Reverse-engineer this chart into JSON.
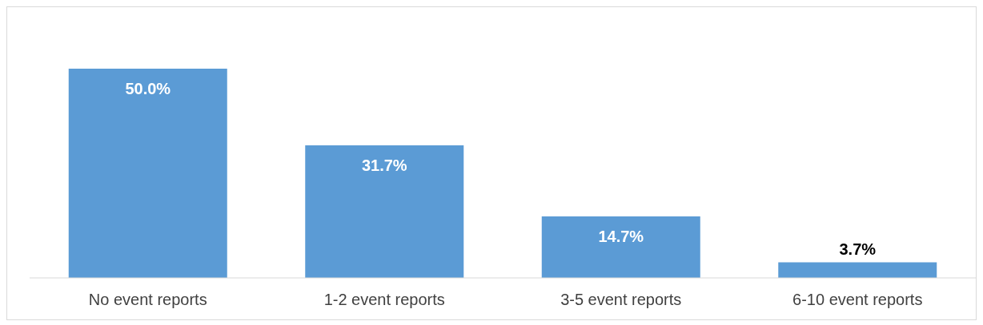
{
  "chart_data": {
    "type": "bar",
    "categories": [
      "No event reports",
      "1-2 event reports",
      "3-5 event reports",
      "6-10 event reports"
    ],
    "values": [
      50.0,
      31.7,
      14.7,
      3.7
    ],
    "color": "#5b9bd5",
    "value_labels": [
      "50.0%",
      "31.7%",
      "14.7%",
      "3.7%"
    ],
    "grid": false,
    "legend": false
  }
}
